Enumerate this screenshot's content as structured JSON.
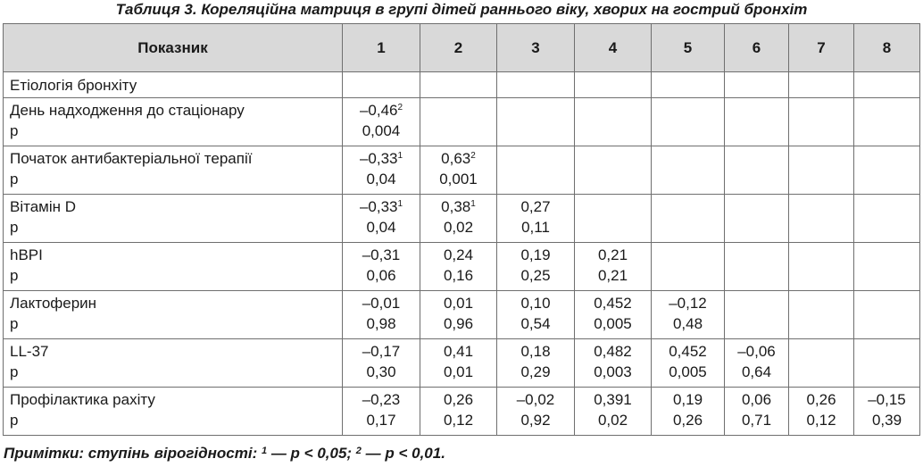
{
  "caption": "Таблиця 3. Кореляційна матриця в групі дітей раннього віку, хворих на гострий бронхіт",
  "table": {
    "header_label": "Показник",
    "columns": [
      "1",
      "2",
      "3",
      "4",
      "5",
      "6",
      "7",
      "8"
    ],
    "rows": [
      {
        "label": "Етіологія бронхіту",
        "p_label": "",
        "cells": []
      },
      {
        "label": "День надходження до стаціонару",
        "p_label": "р",
        "cells": [
          {
            "r": "–0,46",
            "sup": "2",
            "p": "0,004"
          }
        ]
      },
      {
        "label": "Початок антибактеріальної терапії",
        "p_label": "р",
        "cells": [
          {
            "r": "–0,33",
            "sup": "1",
            "p": "0,04"
          },
          {
            "r": "0,63",
            "sup": "2",
            "p": "0,001"
          }
        ]
      },
      {
        "label": "Вітамін D",
        "p_label": "р",
        "cells": [
          {
            "r": "–0,33",
            "sup": "1",
            "p": "0,04"
          },
          {
            "r": "0,38",
            "sup": "1",
            "p": "0,02"
          },
          {
            "r": "0,27",
            "sup": "",
            "p": "0,11"
          }
        ]
      },
      {
        "label": "hBPI",
        "p_label": "р",
        "cells": [
          {
            "r": "–0,31",
            "sup": "",
            "p": "0,06"
          },
          {
            "r": "0,24",
            "sup": "",
            "p": "0,16"
          },
          {
            "r": "0,19",
            "sup": "",
            "p": "0,25"
          },
          {
            "r": "0,21",
            "sup": "",
            "p": "0,21"
          }
        ]
      },
      {
        "label": "Лактоферин",
        "p_label": "р",
        "cells": [
          {
            "r": "–0,01",
            "sup": "",
            "p": "0,98"
          },
          {
            "r": "0,01",
            "sup": "",
            "p": "0,96"
          },
          {
            "r": "0,10",
            "sup": "",
            "p": "0,54"
          },
          {
            "r": "0,452",
            "sup": "",
            "p": "0,005"
          },
          {
            "r": "–0,12",
            "sup": "",
            "p": "0,48"
          }
        ]
      },
      {
        "label": "LL-37",
        "p_label": "р",
        "cells": [
          {
            "r": "–0,17",
            "sup": "",
            "p": "0,30"
          },
          {
            "r": "0,41",
            "sup": "",
            "p": "0,01"
          },
          {
            "r": "0,18",
            "sup": "",
            "p": "0,29"
          },
          {
            "r": "0,482",
            "sup": "",
            "p": "0,003"
          },
          {
            "r": "0,452",
            "sup": "",
            "p": "0,005"
          },
          {
            "r": "–0,06",
            "sup": "",
            "p": "0,64"
          }
        ]
      },
      {
        "label": "Профілактика рахіту",
        "p_label": "р",
        "cells": [
          {
            "r": "–0,23",
            "sup": "",
            "p": "0,17"
          },
          {
            "r": "0,26",
            "sup": "",
            "p": "0,12"
          },
          {
            "r": "–0,02",
            "sup": "",
            "p": "0,92"
          },
          {
            "r": "0,391",
            "sup": "",
            "p": "0,02"
          },
          {
            "r": "0,19",
            "sup": "",
            "p": "0,26"
          },
          {
            "r": "0,06",
            "sup": "",
            "p": "0,71"
          },
          {
            "r": "0,26",
            "sup": "",
            "p": "0,12"
          },
          {
            "r": "–0,15",
            "sup": "",
            "p": "0,39"
          }
        ]
      }
    ]
  },
  "note": {
    "prefix": "Примітки: ступінь вірогідності: ",
    "sup1": "1",
    "part1": " — р < 0,05; ",
    "sup2": "2",
    "part2": " — р < 0,01."
  }
}
